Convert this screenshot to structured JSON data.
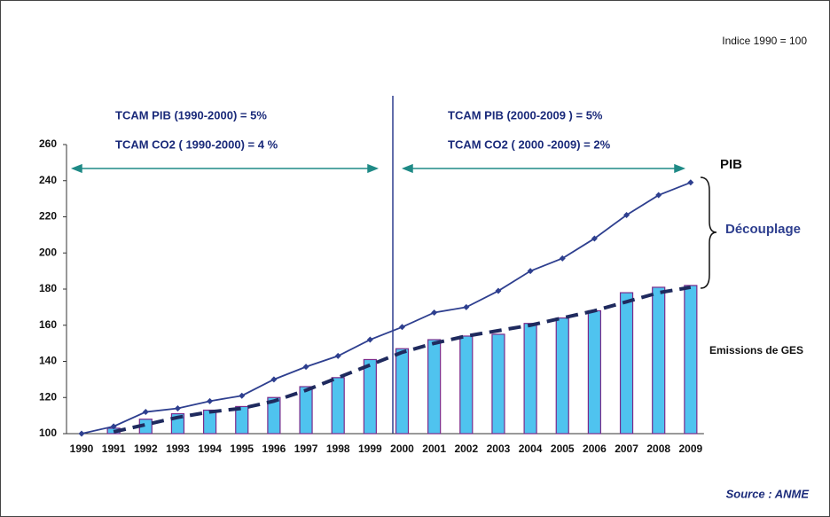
{
  "chart_data": {
    "type": "bar_line",
    "subtitle": "Indice 1990 = 100",
    "annotations": {
      "tcam_pib_1": "TCAM PIB (1990-2000) = 5%",
      "tcam_co2_1": "TCAM CO2 ( 1990-2000) = 4 %",
      "tcam_pib_2": "TCAM PIB (2000-2009 ) = 5%",
      "tcam_co2_2": "TCAM CO2 ( 2000 -2009) = 2%",
      "decouplage": "Découplage",
      "source": "Source : ANME"
    },
    "categories": [
      "1990",
      "1991",
      "1992",
      "1993",
      "1994",
      "1995",
      "1996",
      "1997",
      "1998",
      "1999",
      "2000",
      "2001",
      "2002",
      "2003",
      "2004",
      "2005",
      "2006",
      "2007",
      "2008",
      "2009"
    ],
    "series": [
      {
        "name": "PIB",
        "type": "line",
        "color": "#2e3f8f",
        "values": [
          100,
          104,
          112,
          114,
          118,
          121,
          130,
          137,
          143,
          152,
          159,
          167,
          170,
          179,
          190,
          197,
          208,
          221,
          232,
          239
        ]
      },
      {
        "name": "Emissions de GES",
        "type": "bar",
        "color": "#4fc3ef",
        "border_color": "#7a2a8a",
        "values": [
          100,
          103,
          108,
          111,
          113,
          115,
          120,
          126,
          131,
          141,
          147,
          152,
          154,
          155,
          161,
          164,
          168,
          178,
          181,
          182
        ]
      },
      {
        "type": "dashed_line",
        "color": "#1f2a5e",
        "values": [
          null,
          101,
          105,
          109,
          112,
          114,
          118,
          124,
          131,
          138,
          145,
          150,
          154,
          157,
          160,
          164,
          168,
          173,
          178,
          181
        ]
      }
    ],
    "ylim": [
      100,
      260
    ],
    "yticks": [
      100,
      120,
      140,
      160,
      180,
      200,
      220,
      240,
      260
    ]
  }
}
